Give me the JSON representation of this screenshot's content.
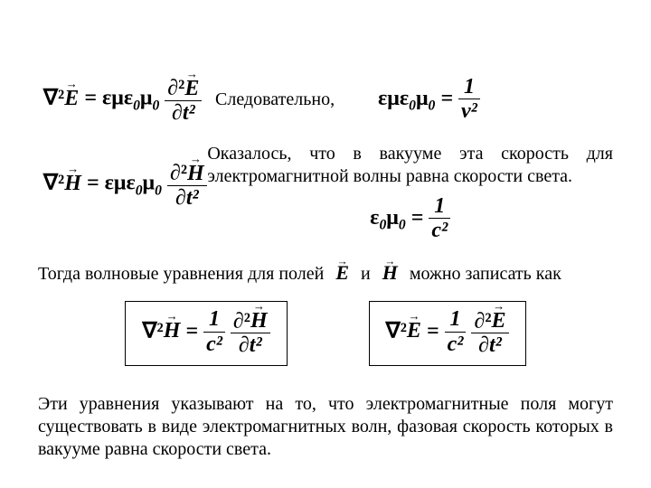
{
  "colors": {
    "background": "#ffffff",
    "text": "#000000",
    "border": "#000000"
  },
  "typography": {
    "body_family": "Times New Roman",
    "body_size_pt": 15,
    "math_size_pt": 18,
    "math_weight": "bold",
    "math_style": "italic"
  },
  "symbols": {
    "nabla2": "∇²",
    "E_vec": "E",
    "H_vec": "H",
    "eps": "ε",
    "mu": "μ",
    "partial": "∂",
    "partial2": "∂²",
    "t": "t",
    "t2": "t²",
    "c2": "c²",
    "v2": "v²",
    "equals": " = ",
    "one": "1",
    "zero_sub": "0"
  },
  "eq_E_wave": {
    "lhs": "∇²E⃗",
    "rhs_coeff": "εμε₀μ₀",
    "rhs_frac_num": "∂²E⃗",
    "rhs_frac_den": "∂t²"
  },
  "eq_H_wave": {
    "lhs": "∇²H⃗",
    "rhs_coeff": "εμε₀μ₀",
    "rhs_frac_num": "∂²H⃗",
    "rhs_frac_den": "∂t²"
  },
  "eq_speed": {
    "lhs": "εμε₀μ₀",
    "rhs_num": "1",
    "rhs_den": "v²"
  },
  "eq_c": {
    "lhs": "ε₀μ₀",
    "rhs_num": "1",
    "rhs_den": "c²"
  },
  "eq_boxed_H": {
    "lhs": "∇²H⃗",
    "rhs_coeff_num": "1",
    "rhs_coeff_den": "c²",
    "rhs_frac_num": "∂²H⃗",
    "rhs_frac_den": "∂t²"
  },
  "eq_boxed_E": {
    "lhs": "∇²E⃗",
    "rhs_coeff_num": "1",
    "rhs_coeff_den": "c²",
    "rhs_frac_num": "∂²E⃗",
    "rhs_frac_den": "∂t²"
  },
  "text": {
    "consequently": "Следовательно,",
    "vacuum": "Оказалось, что в вакууме эта скорость для электромагнитной волны равна скорости света.",
    "then_fields_pre": "Тогда волновые уравнения для полей",
    "then_fields_mid": "и",
    "then_fields_post": "можно записать как",
    "conclusion": "Эти уравнения указывают на то, что электромагнитные поля могут существовать в виде электромагнитных волн,   фазовая скорость которых в вакууме равна скорости света."
  }
}
